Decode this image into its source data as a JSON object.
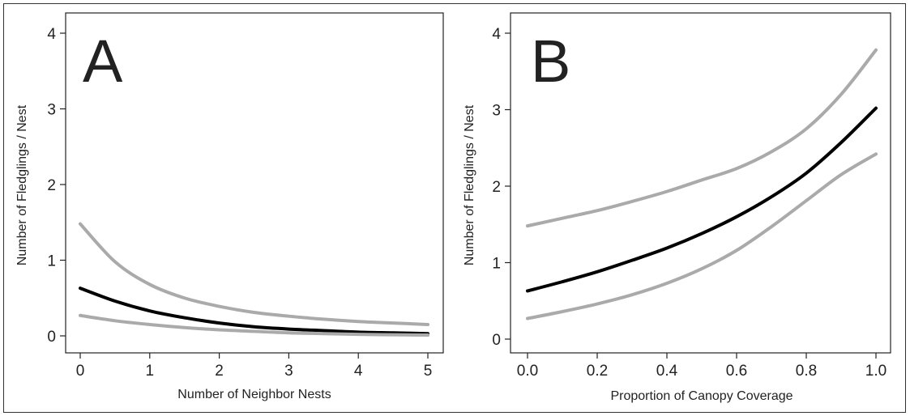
{
  "chart_data": [
    {
      "type": "line",
      "panel_letter": "A",
      "title": "",
      "xlabel": "Number of Neighbor Nests",
      "ylabel": "Number of Fledglings / Nest",
      "xlim": [
        0,
        5
      ],
      "ylim": [
        0,
        4
      ],
      "xticks": [
        "0",
        "1",
        "2",
        "3",
        "4",
        "5"
      ],
      "yticks": [
        "0",
        "1",
        "2",
        "3",
        "4"
      ],
      "grid": false,
      "x": [
        0,
        0.5,
        1,
        1.5,
        2,
        2.5,
        3,
        3.5,
        4,
        4.5,
        5
      ],
      "series": [
        {
          "role": "upper-ci",
          "color": "#aaaaaa",
          "values": [
            1.48,
            0.98,
            0.68,
            0.5,
            0.39,
            0.31,
            0.26,
            0.22,
            0.19,
            0.17,
            0.15
          ]
        },
        {
          "role": "estimate",
          "color": "#000000",
          "values": [
            0.63,
            0.46,
            0.33,
            0.24,
            0.17,
            0.12,
            0.09,
            0.07,
            0.05,
            0.04,
            0.03
          ]
        },
        {
          "role": "lower-ci",
          "color": "#aaaaaa",
          "values": [
            0.27,
            0.2,
            0.15,
            0.11,
            0.08,
            0.06,
            0.04,
            0.03,
            0.02,
            0.015,
            0.01
          ]
        }
      ]
    },
    {
      "type": "line",
      "panel_letter": "B",
      "title": "",
      "xlabel": "Proportion of Canopy Coverage",
      "ylabel": "Number of Fledglings / Nest",
      "xlim": [
        0,
        1
      ],
      "ylim": [
        0,
        4
      ],
      "xticks": [
        "0.0",
        "0.2",
        "0.4",
        "0.6",
        "0.8",
        "1.0"
      ],
      "yticks": [
        "0",
        "1",
        "2",
        "3",
        "4"
      ],
      "grid": false,
      "x": [
        0,
        0.1,
        0.2,
        0.3,
        0.4,
        0.5,
        0.6,
        0.7,
        0.8,
        0.9,
        1.0
      ],
      "series": [
        {
          "role": "upper-ci",
          "color": "#aaaaaa",
          "values": [
            1.48,
            1.58,
            1.68,
            1.8,
            1.93,
            2.08,
            2.23,
            2.45,
            2.75,
            3.2,
            3.78
          ]
        },
        {
          "role": "estimate",
          "color": "#000000",
          "values": [
            0.63,
            0.75,
            0.88,
            1.03,
            1.19,
            1.38,
            1.6,
            1.86,
            2.17,
            2.57,
            3.02
          ]
        },
        {
          "role": "lower-ci",
          "color": "#aaaaaa",
          "values": [
            0.27,
            0.36,
            0.46,
            0.58,
            0.73,
            0.92,
            1.16,
            1.47,
            1.81,
            2.15,
            2.42
          ]
        }
      ]
    }
  ]
}
